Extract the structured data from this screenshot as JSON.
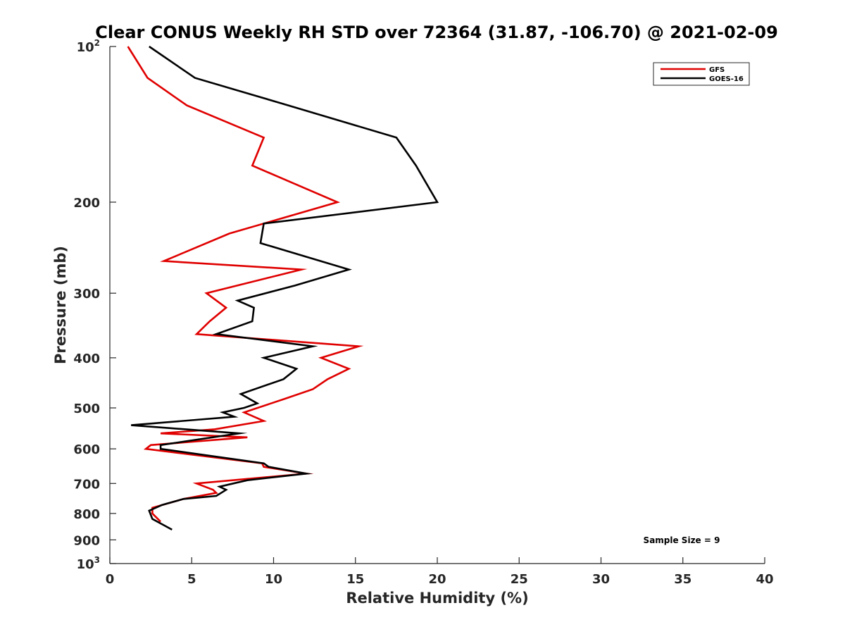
{
  "chart_data": {
    "type": "line",
    "title": "Clear CONUS Weekly RH STD over 72364 (31.87, -106.70) @ 2021-02-09",
    "xlabel": "Relative Humidity (%)",
    "ylabel": "Pressure (mb)",
    "xlim": [
      0,
      40
    ],
    "ylim": [
      100,
      1000
    ],
    "y_scale": "log",
    "y_reversed": true,
    "grid": false,
    "legend_position": "top-right",
    "x_ticks": [
      "0",
      "5",
      "10",
      "15",
      "20",
      "25",
      "30",
      "35",
      "40"
    ],
    "y_ticks": [
      {
        "value": 100,
        "base": "10",
        "exp": "2"
      },
      {
        "value": 200,
        "label": "200"
      },
      {
        "value": 300,
        "label": "300"
      },
      {
        "value": 400,
        "label": "400"
      },
      {
        "value": 500,
        "label": "500"
      },
      {
        "value": 600,
        "label": "600"
      },
      {
        "value": 700,
        "label": "700"
      },
      {
        "value": 800,
        "label": "800"
      },
      {
        "value": 900,
        "label": "900"
      },
      {
        "value": 1000,
        "base": "10",
        "exp": "3"
      }
    ],
    "annotation": "Sample Size = 9",
    "series": [
      {
        "name": "GFS",
        "color": "#e00000",
        "x": [
          1.1,
          2.3,
          4.7,
          9.4,
          8.7,
          13.9,
          7.3,
          3.3,
          11.7,
          5.9,
          7.1,
          6.1,
          5.3,
          15.2,
          12.9,
          14.6,
          13.3,
          12.4,
          10.7,
          8.2,
          9.4,
          6.4,
          3.1,
          8.4,
          2.5,
          2.2,
          9.3,
          9.4,
          12.0,
          5.3,
          6.3,
          6.5,
          4.5,
          2.6,
          2.6,
          3.1
        ],
        "y": [
          100,
          115,
          130,
          150,
          170,
          200,
          230,
          260,
          270,
          300,
          320,
          340,
          360,
          380,
          400,
          420,
          440,
          460,
          480,
          510,
          530,
          550,
          560,
          570,
          590,
          600,
          640,
          650,
          670,
          700,
          720,
          730,
          750,
          780,
          800,
          830
        ]
      },
      {
        "name": "GOES-16",
        "color": "#000000",
        "x": [
          2.4,
          5.2,
          10.9,
          17.5,
          18.7,
          20.0,
          9.4,
          9.2,
          14.6,
          11.3,
          7.8,
          8.8,
          8.7,
          6.5,
          12.4,
          9.4,
          11.4,
          10.6,
          8.0,
          9.0,
          8.2,
          6.9,
          7.6,
          1.3,
          7.9,
          3.1,
          3.1,
          9.4,
          9.7,
          12.0,
          8.4,
          6.7,
          7.1,
          6.5,
          4.5,
          3.2,
          2.4,
          2.6,
          3.8
        ],
        "y": [
          100,
          115,
          130,
          150,
          170,
          200,
          220,
          240,
          270,
          290,
          310,
          320,
          340,
          360,
          380,
          400,
          420,
          440,
          470,
          490,
          500,
          510,
          520,
          540,
          560,
          590,
          600,
          640,
          650,
          670,
          690,
          710,
          720,
          740,
          750,
          770,
          790,
          820,
          860
        ]
      }
    ]
  }
}
